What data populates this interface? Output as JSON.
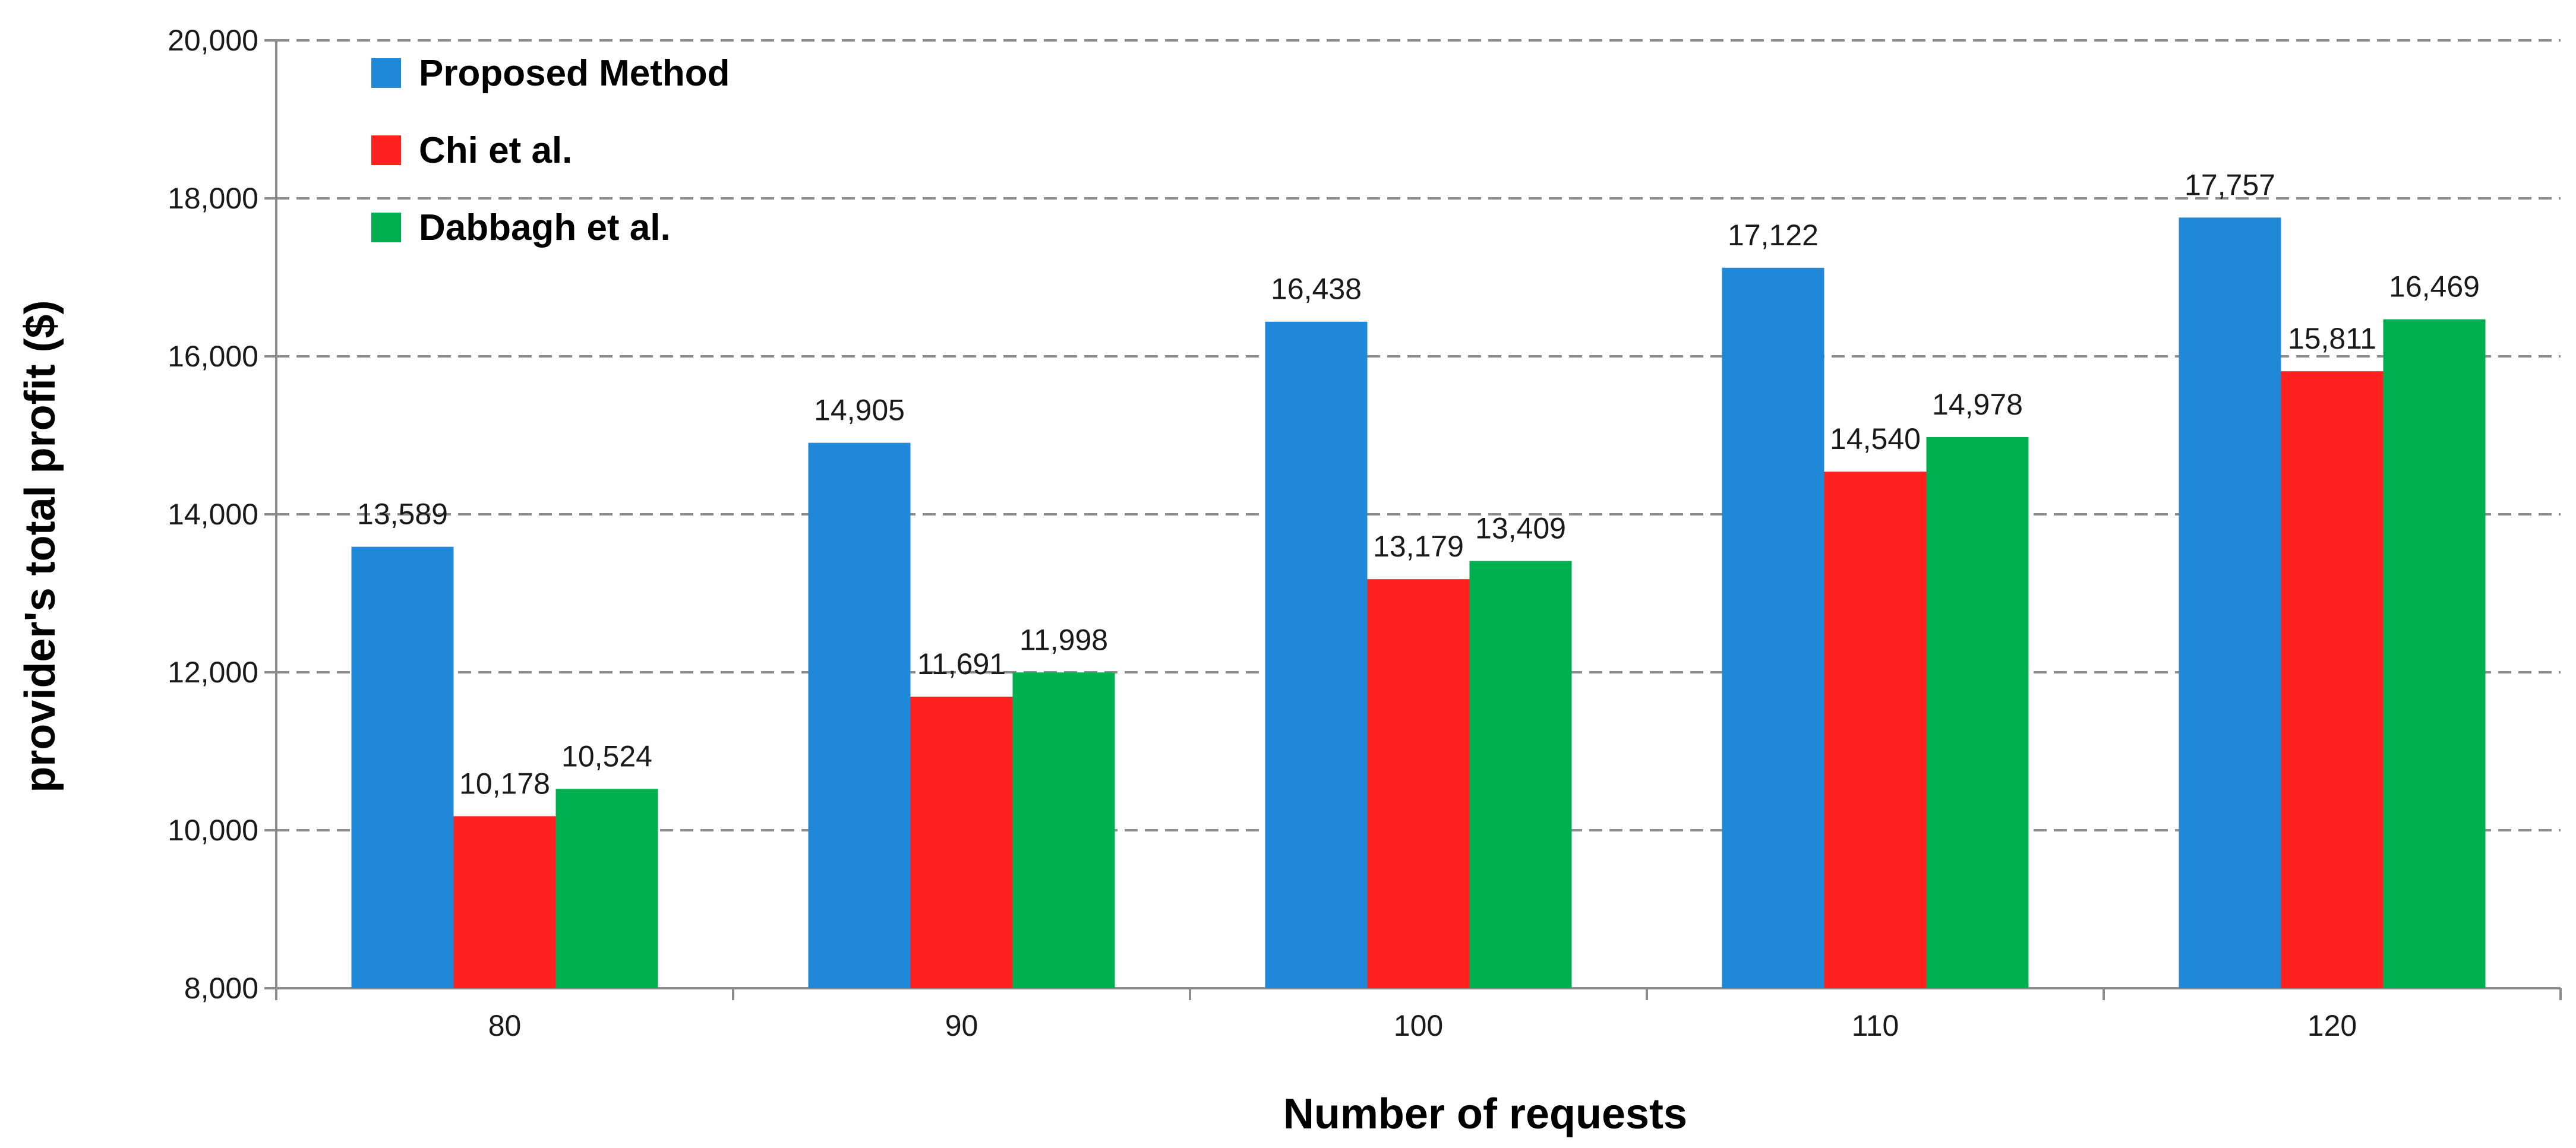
{
  "chart_data": {
    "type": "bar",
    "title": "",
    "xlabel": "Number of requests",
    "ylabel": "provider's total profit ($)",
    "categories": [
      "80",
      "90",
      "100",
      "110",
      "120"
    ],
    "series": [
      {
        "name": "Proposed Method",
        "color": "#1f88d8",
        "values": [
          13589,
          14905,
          16438,
          17122,
          17757
        ],
        "labels": [
          "13,589",
          "14,905",
          "16,438",
          "17,122",
          "17,757"
        ]
      },
      {
        "name": "Chi et al.",
        "color": "#ff2020",
        "values": [
          10178,
          11691,
          13179,
          14540,
          15811
        ],
        "labels": [
          "10,178",
          "11,691",
          "13,179",
          "14,540",
          "15,811"
        ]
      },
      {
        "name": "Dabbagh et al.",
        "color": "#00b050",
        "values": [
          10524,
          11998,
          13409,
          14978,
          16469
        ],
        "labels": [
          "10,524",
          "11,998",
          "13,409",
          "14,978",
          "16,469"
        ]
      }
    ],
    "ylim": [
      8000,
      20000
    ],
    "yticks": [
      8000,
      10000,
      12000,
      14000,
      16000,
      18000,
      20000
    ],
    "ytick_labels": [
      "8,000",
      "10,000",
      "12,000",
      "14,000",
      "16,000",
      "18,000",
      "20,000"
    ],
    "grid": true,
    "legend_position": "top-left"
  }
}
